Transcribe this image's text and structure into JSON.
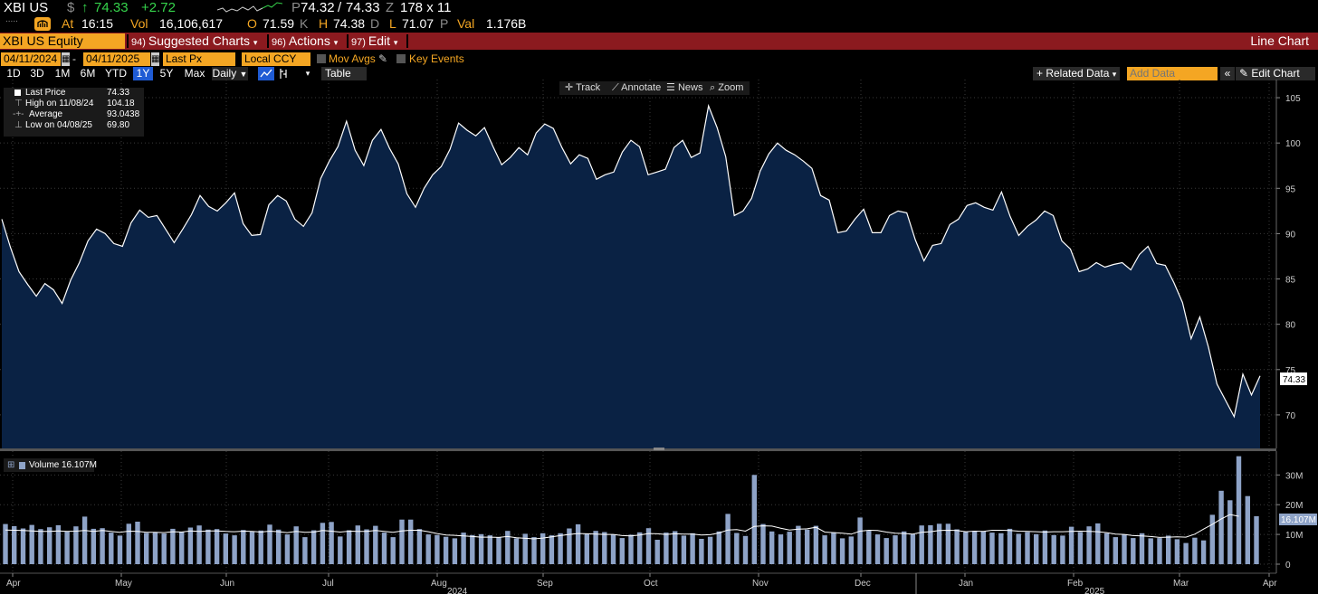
{
  "quote": {
    "ticker": "XBI US",
    "currency_symbol": "$",
    "arrow": "↑",
    "last": "74.33",
    "change": "+2.72",
    "bid_prefix": "P",
    "bid": "74.32",
    "ask": "74.33",
    "ask_suffix": "Z",
    "size": "178 x 11",
    "row2_dots": ".....",
    "at_label": "At",
    "time": "16:15",
    "vol_label": "Vol",
    "volume": "16,106,617",
    "open_label": "O",
    "open": "71.59",
    "open_suffix": "K",
    "high_label": "H",
    "high": "74.38",
    "high_suffix": "D",
    "low_label": "L",
    "low": "71.07",
    "low_suffix": "P",
    "val_label": "Val",
    "value": "1.176B"
  },
  "command_bar": {
    "security": "XBI US Equity",
    "menus": [
      {
        "num": "94)",
        "label": "Suggested Charts"
      },
      {
        "num": "96)",
        "label": "Actions"
      },
      {
        "num": "97)",
        "label": "Edit"
      }
    ],
    "chart_type": "Line Chart"
  },
  "range": {
    "start": "04/11/2024",
    "dash": "-",
    "end": "04/11/2025",
    "field": "Last Px",
    "currency": "Local CCY",
    "mov_avgs": "Mov Avgs",
    "key_events": "Key Events"
  },
  "periods": [
    "1D",
    "3D",
    "1M",
    "6M",
    "YTD",
    "1Y",
    "5Y",
    "Max"
  ],
  "selected_period": "1Y",
  "frequency": "Daily",
  "table_label": "Table",
  "related_data": "+ Related Data",
  "add_data_placeholder": "Add Data",
  "edit_chart": "Edit Chart",
  "tools": [
    "Track",
    "Annotate",
    "News",
    "Zoom"
  ],
  "legend": {
    "last_price_label": "Last Price",
    "last_price": "74.33",
    "high_label": "High on 11/08/24",
    "high": "104.18",
    "average_label": "Average",
    "average": "93.0438",
    "low_label": "Low on 04/08/25",
    "low": "69.80"
  },
  "volume_legend": {
    "label": "Volume",
    "value": "16.107M"
  },
  "colors": {
    "accent": "#f4a623",
    "menu_bar": "#8b1a1f",
    "price_fill": "#0a2244",
    "volume_bar": "#8ea3c7",
    "up": "#35d34b"
  },
  "chart_data": [
    {
      "type": "area",
      "series": [
        {
          "name": "Last Price",
          "values": [
            91.6,
            88.5,
            85.8,
            84.4,
            83.1,
            84.5,
            83.8,
            82.3,
            84.9,
            86.8,
            89.2,
            90.5,
            90.0,
            88.9,
            88.6,
            91.2,
            92.6,
            91.8,
            92.0,
            90.5,
            89.0,
            90.5,
            92.1,
            94.2,
            93.0,
            92.5,
            93.4,
            94.5,
            91.1,
            89.8,
            89.9,
            93.2,
            94.2,
            93.6,
            91.6,
            90.8,
            92.3,
            96.1,
            98.0,
            99.6,
            102.4,
            99.2,
            97.5,
            100.3,
            101.5,
            99.4,
            97.7,
            94.4,
            92.9,
            95.0,
            96.5,
            97.4,
            99.3,
            102.2,
            101.4,
            100.8,
            101.7,
            99.6,
            97.6,
            98.4,
            99.5,
            98.7,
            101.1,
            102.1,
            101.6,
            99.5,
            97.7,
            98.7,
            98.3,
            96.0,
            96.5,
            96.8,
            99.0,
            100.3,
            99.6,
            96.5,
            96.8,
            97.1,
            99.5,
            100.3,
            98.4,
            98.9,
            104.1,
            101.7,
            98.5,
            92.0,
            92.5,
            93.9,
            96.9,
            98.8,
            100.0,
            99.2,
            98.7,
            98.0,
            97.2,
            94.2,
            93.7,
            90.1,
            90.3,
            91.6,
            92.7,
            90.1,
            90.1,
            92.0,
            92.5,
            92.3,
            89.3,
            87.0,
            88.7,
            88.9,
            91.0,
            91.6,
            93.1,
            93.4,
            92.9,
            92.6,
            94.6,
            91.9,
            89.8,
            90.8,
            91.5,
            92.5,
            92.0,
            89.2,
            88.3,
            85.8,
            86.1,
            86.8,
            86.3,
            86.6,
            86.8,
            86.0,
            87.7,
            88.6,
            86.7,
            86.5,
            84.6,
            82.4,
            78.4,
            80.8,
            77.5,
            73.4,
            71.6,
            69.8,
            74.5,
            72.2,
            74.3
          ]
        }
      ],
      "x_labels": [
        "Apr",
        "May",
        "Jun",
        "Jul",
        "Aug",
        "Sep",
        "Oct",
        "Nov",
        "Dec",
        "Jan",
        "Feb",
        "Mar",
        "Apr"
      ],
      "year_labels": [
        "2024",
        "2025"
      ],
      "y_ticks": [
        70,
        75,
        80,
        85,
        90,
        95,
        100,
        105
      ],
      "ylim": [
        66.3,
        107
      ],
      "last_value_label": "74.33"
    },
    {
      "type": "bar",
      "series": [
        {
          "name": "Volume",
          "unit": "M",
          "values": [
            13.5,
            12.8,
            12.0,
            13.2,
            11.8,
            12.4,
            13.1,
            10.9,
            12.7,
            16.0,
            11.9,
            12.1,
            10.6,
            9.6,
            13.6,
            14.3,
            10.5,
            10.8,
            10.3,
            11.9,
            10.9,
            12.3,
            13.0,
            11.6,
            11.8,
            10.3,
            9.7,
            11.5,
            10.9,
            11.3,
            13.3,
            11.6,
            10.0,
            12.7,
            9.1,
            11.4,
            13.9,
            14.2,
            9.3,
            11.4,
            13.0,
            11.7,
            12.9,
            10.6,
            9.1,
            15.0,
            15.0,
            11.8,
            10.0,
            9.8,
            9.2,
            8.7,
            10.6,
            9.8,
            10.1,
            9.7,
            9.1,
            11.2,
            8.7,
            10.2,
            9.1,
            10.4,
            9.7,
            10.4,
            12.0,
            13.4,
            10.3,
            11.2,
            10.8,
            10.0,
            8.8,
            9.9,
            10.7,
            12.1,
            8.2,
            10.6,
            11.1,
            9.6,
            10.4,
            8.5,
            9.2,
            11.0,
            16.9,
            10.5,
            9.5,
            30.0,
            13.5,
            11.0,
            10.0,
            10.9,
            12.9,
            11.6,
            12.9,
            9.7,
            10.7,
            8.7,
            9.3,
            15.7,
            11.2,
            10.0,
            8.8,
            9.7,
            11.0,
            10.1,
            13.0,
            13.1,
            13.6,
            13.6,
            11.7,
            10.8,
            11.2,
            11.1,
            10.6,
            10.4,
            11.9,
            10.2,
            10.8,
            10.1,
            11.3,
            9.8,
            9.6,
            12.6,
            10.8,
            12.7,
            13.7,
            10.4,
            9.1,
            10.0,
            8.8,
            10.4,
            8.7,
            8.8,
            9.6,
            8.4,
            7.1,
            8.9,
            8.0,
            16.6,
            24.7,
            21.5,
            36.3,
            22.9,
            16.1
          ]
        },
        {
          "name": "Volume MA",
          "unit": "M",
          "values": [
            11.5,
            11.4,
            11.3,
            11.2,
            11.0,
            11.0,
            11.2,
            11.0,
            11.1,
            11.3,
            11.0,
            11.3,
            11.0,
            10.7,
            11.1,
            11.0,
            10.7,
            10.7,
            10.6,
            10.9,
            10.8,
            11.2,
            11.0,
            11.2,
            11.2,
            11.0,
            10.9,
            11.1,
            11.0,
            10.8,
            11.1,
            10.9,
            10.6,
            11.0,
            10.7,
            10.8,
            11.3,
            11.1,
            10.8,
            11.1,
            11.0,
            11.0,
            11.3,
            11.0,
            10.7,
            11.2,
            11.4,
            11.4,
            10.9,
            10.3,
            9.8,
            9.7,
            9.5,
            9.3,
            9.1,
            9.1,
            9.0,
            9.3,
            8.9,
            8.7,
            8.5,
            8.8,
            9.2,
            9.6,
            10.0,
            10.3,
            10.2,
            10.1,
            10.0,
            10.0,
            9.6,
            9.5,
            9.8,
            10.3,
            10.2,
            10.0,
            10.2,
            10.1,
            10.1,
            9.8,
            9.9,
            10.5,
            11.5,
            11.6,
            11.1,
            12.7,
            12.9,
            12.8,
            12.1,
            11.5,
            11.8,
            11.9,
            12.4,
            10.8,
            10.6,
            10.4,
            10.1,
            11.1,
            11.4,
            11.3,
            10.8,
            10.4,
            10.3,
            10.1,
            10.7,
            10.9,
            11.3,
            11.4,
            11.3,
            10.9,
            11.1,
            11.0,
            11.4,
            11.4,
            11.3,
            11.1,
            11.0,
            10.9,
            10.8,
            10.9,
            10.9,
            11.0,
            11.1,
            11.0,
            10.9,
            10.6,
            10.1,
            10.0,
            9.6,
            9.5,
            9.3,
            9.0,
            9.1,
            9.2,
            9.1,
            10.1,
            11.8,
            13.4,
            15.2,
            16.7,
            16.1
          ]
        }
      ],
      "y_ticks": [
        "0",
        "10M",
        "20M",
        "30M"
      ],
      "ylim": [
        0,
        38
      ],
      "last_value_label": "16.107M"
    }
  ]
}
